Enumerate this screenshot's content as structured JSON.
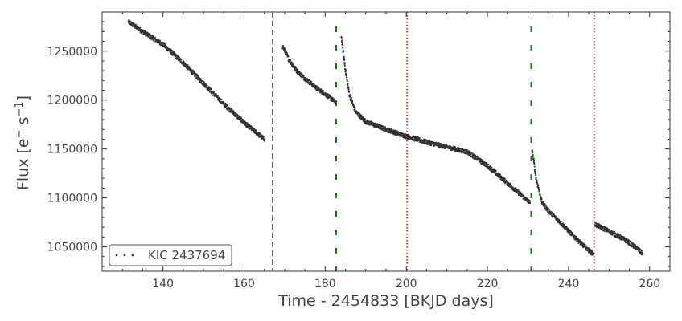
{
  "chart_data": {
    "type": "scatter",
    "xlabel": "Time - 2454833 [BKJD days]",
    "ylabel_main": "Flux [e",
    "ylabel_sup1": "−",
    "ylabel_mid": " s",
    "ylabel_sup2": "−1",
    "ylabel_end": "]",
    "xlim": [
      125,
      265
    ],
    "ylim": [
      1025000,
      1290000
    ],
    "xticks": [
      140,
      160,
      180,
      200,
      220,
      240,
      260
    ],
    "yticks": [
      1050000,
      1100000,
      1150000,
      1200000,
      1250000
    ],
    "legend": {
      "label": "KIC 2437694",
      "placement": "lower-left"
    },
    "point_color": "#333333",
    "series": [
      {
        "name": "KIC 2437694",
        "segments": [
          {
            "x": [
              131.5,
              135,
              140,
              145,
              150,
              155,
              160,
              165
            ],
            "y": [
              1280000,
              1270000,
              1257000,
              1238000,
              1217000,
              1196000,
              1177000,
              1160000
            ]
          },
          {
            "x": [
              169.5,
              171,
              173,
              175,
              178,
              181,
              182.5
            ],
            "y": [
              1255000,
              1242000,
              1230000,
              1222000,
              1212000,
              1203000,
              1198000
            ]
          },
          {
            "x": [
              184,
              185,
              186,
              187.5,
              190,
              195,
              200,
              205,
              210,
              215,
              220,
              225,
              230.5
            ],
            "y": [
              1265000,
              1230000,
              1205000,
              1188000,
              1178000,
              1170000,
              1163000,
              1157000,
              1152000,
              1147000,
              1133000,
              1115000,
              1095000
            ]
          },
          {
            "x": [
              231,
              232,
              233.5,
              235,
              238,
              241,
              244,
              246
            ],
            "y": [
              1150000,
              1120000,
              1095000,
              1087000,
              1075000,
              1062000,
              1050000,
              1043000
            ]
          },
          {
            "x": [
              246.5,
              250,
              254,
              257,
              258.3
            ],
            "y": [
              1073000,
              1066000,
              1057000,
              1048000,
              1043000
            ]
          }
        ]
      }
    ],
    "vlines": [
      {
        "x": 167.0,
        "color": "#5a6a82",
        "style": "dashed"
      },
      {
        "x": 182.7,
        "color": "#008000",
        "style": "dashed-green"
      },
      {
        "x": 230.8,
        "color": "#008000",
        "style": "dashed-green"
      },
      {
        "x": 200.2,
        "color": "#d62728",
        "style": "dotted"
      },
      {
        "x": 246.3,
        "color": "#d62728",
        "style": "dotted"
      }
    ]
  }
}
